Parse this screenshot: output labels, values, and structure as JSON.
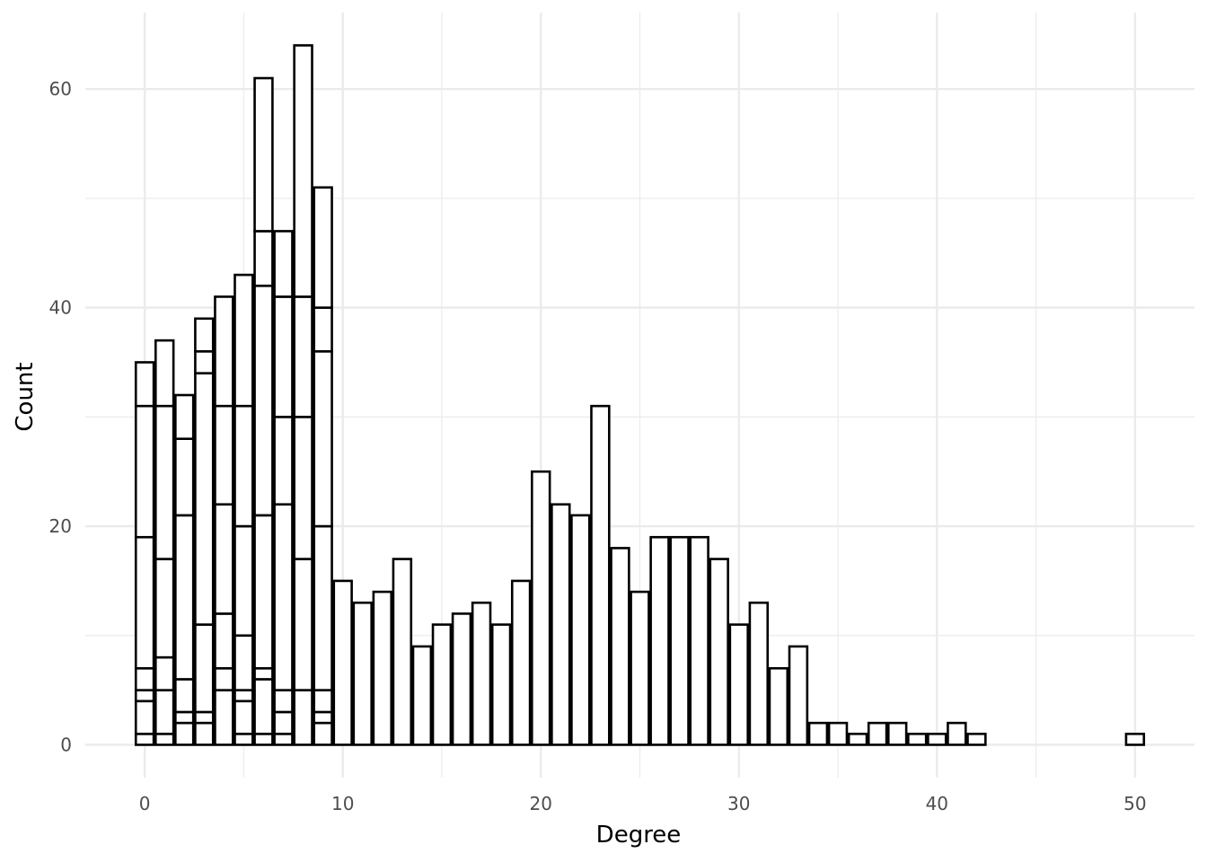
{
  "chart_data": {
    "type": "bar",
    "subtype": "stacked-histogram",
    "title": "",
    "xlabel": "Degree",
    "ylabel": "Count",
    "xlim": [
      -3,
      53
    ],
    "ylim": [
      -3,
      67
    ],
    "x_ticks": [
      0,
      10,
      20,
      30,
      40,
      50
    ],
    "y_ticks": [
      0,
      20,
      40,
      60
    ],
    "grid": true,
    "legend": "none",
    "colors": {
      "fill": "#ffffff",
      "stroke": "#000000",
      "grid": "#ebebeb",
      "tick_text": "#4d4d4d"
    },
    "bins": [
      {
        "x": 0,
        "levels": [
          1,
          4,
          5,
          7,
          19,
          31,
          35
        ]
      },
      {
        "x": 1,
        "levels": [
          1,
          5,
          8,
          17,
          31,
          37
        ]
      },
      {
        "x": 2,
        "levels": [
          2,
          3,
          6,
          21,
          28,
          32
        ]
      },
      {
        "x": 3,
        "levels": [
          2,
          3,
          11,
          34,
          36,
          39
        ]
      },
      {
        "x": 4,
        "levels": [
          5,
          7,
          12,
          22,
          31,
          41
        ]
      },
      {
        "x": 5,
        "levels": [
          1,
          4,
          5,
          10,
          20,
          31,
          43
        ]
      },
      {
        "x": 6,
        "levels": [
          1,
          6,
          7,
          21,
          42,
          47,
          61
        ]
      },
      {
        "x": 7,
        "levels": [
          1,
          3,
          5,
          22,
          30,
          41,
          47
        ]
      },
      {
        "x": 8,
        "levels": [
          5,
          17,
          30,
          41,
          64
        ]
      },
      {
        "x": 9,
        "levels": [
          2,
          3,
          5,
          20,
          36,
          40,
          51
        ]
      },
      {
        "x": 10,
        "levels": [
          15
        ]
      },
      {
        "x": 11,
        "levels": [
          13
        ]
      },
      {
        "x": 12,
        "levels": [
          14
        ]
      },
      {
        "x": 13,
        "levels": [
          17
        ]
      },
      {
        "x": 14,
        "levels": [
          9
        ]
      },
      {
        "x": 15,
        "levels": [
          11
        ]
      },
      {
        "x": 16,
        "levels": [
          12
        ]
      },
      {
        "x": 17,
        "levels": [
          13
        ]
      },
      {
        "x": 18,
        "levels": [
          11
        ]
      },
      {
        "x": 19,
        "levels": [
          15
        ]
      },
      {
        "x": 20,
        "levels": [
          25
        ]
      },
      {
        "x": 21,
        "levels": [
          22
        ]
      },
      {
        "x": 22,
        "levels": [
          21
        ]
      },
      {
        "x": 23,
        "levels": [
          31
        ]
      },
      {
        "x": 24,
        "levels": [
          18
        ]
      },
      {
        "x": 25,
        "levels": [
          14
        ]
      },
      {
        "x": 26,
        "levels": [
          19
        ]
      },
      {
        "x": 27,
        "levels": [
          19
        ]
      },
      {
        "x": 28,
        "levels": [
          19
        ]
      },
      {
        "x": 29,
        "levels": [
          17
        ]
      },
      {
        "x": 30,
        "levels": [
          11
        ]
      },
      {
        "x": 31,
        "levels": [
          13
        ]
      },
      {
        "x": 32,
        "levels": [
          7
        ]
      },
      {
        "x": 33,
        "levels": [
          9
        ]
      },
      {
        "x": 34,
        "levels": [
          2
        ]
      },
      {
        "x": 35,
        "levels": [
          2
        ]
      },
      {
        "x": 36,
        "levels": [
          1
        ]
      },
      {
        "x": 37,
        "levels": [
          2
        ]
      },
      {
        "x": 38,
        "levels": [
          2
        ]
      },
      {
        "x": 39,
        "levels": [
          1
        ]
      },
      {
        "x": 40,
        "levels": [
          1
        ]
      },
      {
        "x": 41,
        "levels": [
          2
        ]
      },
      {
        "x": 42,
        "levels": [
          1
        ]
      },
      {
        "x": 50,
        "levels": [
          1
        ]
      }
    ]
  }
}
